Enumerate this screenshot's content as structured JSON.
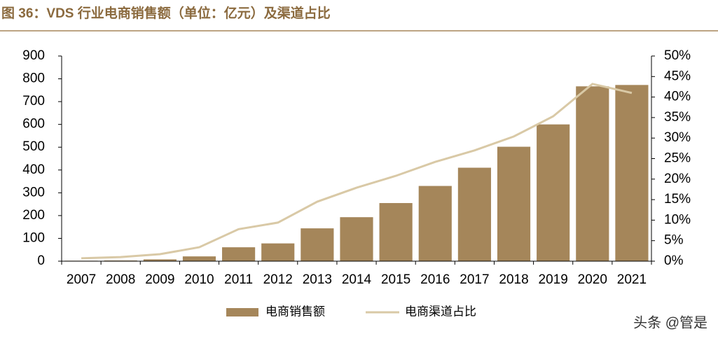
{
  "chart_data": {
    "type": "bar_line",
    "title": "图 36：VDS 行业电商销售额（单位：亿元）及渠道占比",
    "categories": [
      "2007",
      "2008",
      "2009",
      "2010",
      "2011",
      "2012",
      "2013",
      "2014",
      "2015",
      "2016",
      "2017",
      "2018",
      "2019",
      "2020",
      "2021"
    ],
    "series": [
      {
        "name": "电商销售额",
        "type": "bar",
        "color": "#a5865a",
        "values": [
          2,
          3,
          8,
          21,
          61,
          78,
          144,
          193,
          255,
          330,
          410,
          502,
          600,
          767,
          773
        ]
      },
      {
        "name": "电商渠道占比",
        "type": "line",
        "axis": "y2",
        "color": "#d9c9a6",
        "values": [
          0.7,
          1.0,
          1.7,
          3.4,
          7.8,
          9.4,
          14.5,
          17.9,
          20.8,
          24.2,
          27.0,
          30.4,
          35.3,
          43.2,
          41.0
        ]
      }
    ],
    "ylim": [
      0,
      900
    ],
    "yticks": [
      0,
      100,
      200,
      300,
      400,
      500,
      600,
      700,
      800,
      900
    ],
    "y2lim": [
      0,
      50
    ],
    "y2ticks": [
      {
        "value": 0,
        "label": "0%"
      },
      {
        "value": 5,
        "label": "5%"
      },
      {
        "value": 10,
        "label": "10%"
      },
      {
        "value": 15,
        "label": "15%"
      },
      {
        "value": 20,
        "label": "20%"
      },
      {
        "value": 25,
        "label": "25%"
      },
      {
        "value": 30,
        "label": "30%"
      },
      {
        "value": 35,
        "label": "35%"
      },
      {
        "value": 40,
        "label": "40%"
      },
      {
        "value": 45,
        "label": "45%"
      },
      {
        "value": 50,
        "label": "50%"
      }
    ],
    "grid": false,
    "legend": "bottom",
    "annotations": [
      "头条 @管是"
    ]
  }
}
